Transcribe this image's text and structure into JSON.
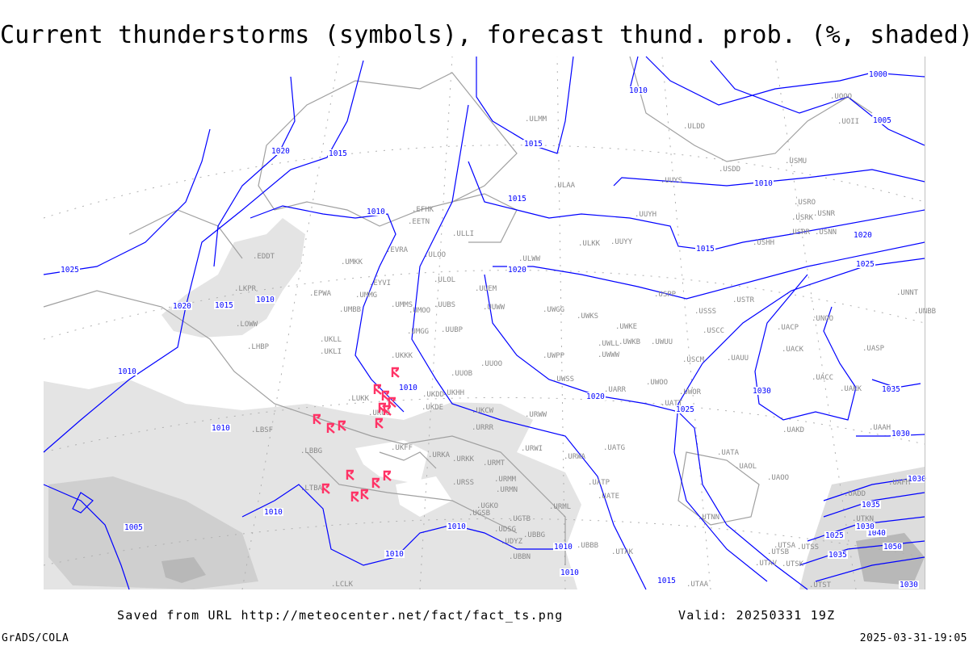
{
  "title": "Current thunderstorms (symbols), forecast thund. prob. (%, shaded)",
  "footer": {
    "saved": "Saved from URL http://meteocenter.net/fact/fact_ts.png",
    "valid": "Valid: 20250331 19Z",
    "software": "GrADS/COLA",
    "generated": "2025-03-31-19:05"
  },
  "colors": {
    "isobar": "#0000ff",
    "thunderstorm_symbol": "#ff3366",
    "coastline": "#a0a0a0",
    "probability_shade_light": "#e4e4e4",
    "probability_shade_dark": "#b8b8b8"
  },
  "symbol_type": "thunderstorm-icon",
  "stations": [
    "ULMM",
    "ULAA",
    "EFHK",
    "EETN",
    "ULLI",
    "EVRA",
    "ULOO",
    "UMKK",
    "EDDT",
    "ULOL",
    "EYVI",
    "UMMG",
    "EPWA",
    "LKPR",
    "UMBB",
    "UMMS",
    "UMOO",
    "UUBS",
    "UUEM",
    "UUWW",
    "LOWW",
    "UKLL",
    "UMGG",
    "UUBP",
    "UKLI",
    "LHBP",
    "UKKK",
    "UUOO",
    "UUOB",
    "LUKK",
    "UKOO",
    "UKHH",
    "UKDD",
    "UKDE",
    "UKCW",
    "URRR",
    "LBSF",
    "UKFF",
    "URKA",
    "URKK",
    "URMT",
    "LBBG",
    "URMM",
    "URSS",
    "URMN",
    "LTBA",
    "UGKO",
    "UGSB",
    "UGTB",
    "UDSG",
    "UBBG",
    "UDYZ",
    "UBBN",
    "UBBB",
    "URML",
    "UATG",
    "URWA",
    "URWI",
    "UATP",
    "UATE",
    "UTAK",
    "UTAA",
    "LCLK",
    "UWKS",
    "UWGG",
    "ULWW",
    "ULKK",
    "UUYY",
    "UUYH",
    "UUYS",
    "ULDD",
    "USDD",
    "USMU",
    "UOOO",
    "UOII",
    "USRO",
    "USRK",
    "USNR",
    "USRR",
    "USNN",
    "USHH",
    "USPP",
    "USTR",
    "USSS",
    "UNOO",
    "UNNT",
    "UNBB",
    "UWKE",
    "USCC",
    "UACP",
    "UWKB",
    "UWUU",
    "UWWW",
    "USCM",
    "UAUU",
    "UACK",
    "UASP",
    "UWPP",
    "UWLL",
    "UWSS",
    "UWOO",
    "UARR",
    "UWOR",
    "UACC",
    "UAKK",
    "UATT",
    "URWW",
    "UAKD",
    "UAAH",
    "UATA",
    "UAOL",
    "UAOO",
    "UAFM",
    "UADD",
    "UTNN",
    "UTKN",
    "UTSA",
    "UTSS",
    "UTSB",
    "UTAV",
    "UTSK",
    "UTST"
  ],
  "isobar_labels": [
    "1020",
    "1015",
    "1010",
    "1015",
    "1010",
    "1015",
    "1025",
    "1020",
    "1015",
    "1010",
    "1020",
    "1010",
    "1015",
    "1000",
    "1005",
    "1020",
    "1025",
    "1010",
    "1010",
    "1020",
    "1025",
    "1030",
    "1035",
    "1030",
    "1030",
    "1010",
    "1035",
    "1040",
    "1030",
    "1010",
    "1010",
    "1005",
    "1010",
    "1010",
    "1010",
    "1015",
    "1035",
    "1030",
    "1050",
    "1025"
  ],
  "thunderstorm_count": 16
}
